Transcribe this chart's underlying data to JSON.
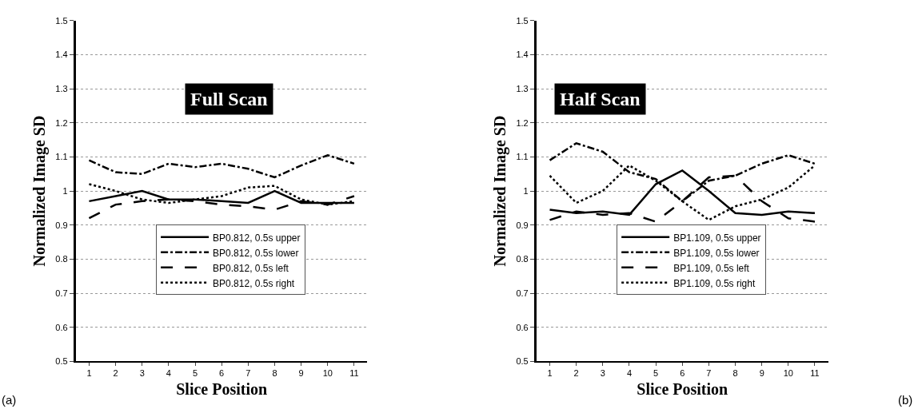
{
  "chart_data": [
    {
      "type": "line",
      "title": "Full Scan",
      "xlabel": "Slice Position",
      "ylabel": "Normalized Image SD",
      "categories": [
        "1",
        "2",
        "3",
        "4",
        "5",
        "6",
        "7",
        "8",
        "9",
        "10",
        "11"
      ],
      "ylim": [
        0.5,
        1.5
      ],
      "yticks": [
        {
          "value": 0.5,
          "label": "0.5"
        },
        {
          "value": 0.6,
          "label": "0.6"
        },
        {
          "value": 0.7,
          "label": "0.7"
        },
        {
          "value": 0.8,
          "label": "0.8"
        },
        {
          "value": 0.9,
          "label": "0.9"
        },
        {
          "value": 1,
          "label": "1"
        },
        {
          "value": 1.1,
          "label": "1.1"
        },
        {
          "value": 1.2,
          "label": "1.2"
        },
        {
          "value": 1.3,
          "label": "1.3"
        },
        {
          "value": 1.4,
          "label": "1.4"
        },
        {
          "value": 1.5,
          "label": "1.5"
        }
      ],
      "grid": "y",
      "legend": "bottom",
      "marker": "none",
      "annotations": [
        "(a)"
      ],
      "series": [
        {
          "name": "BP0.812, 0.5s upper",
          "color": "#000000",
          "line_style": "solid",
          "values": [
            0.97,
            0.985,
            1.0,
            0.975,
            0.975,
            0.97,
            0.965,
            1.0,
            0.965,
            0.965,
            0.965
          ]
        },
        {
          "name": "BP0.812, 0.5s lower",
          "color": "#000000",
          "line_style": "dashdot",
          "values": [
            1.09,
            1.055,
            1.05,
            1.08,
            1.07,
            1.08,
            1.065,
            1.04,
            1.075,
            1.105,
            1.08
          ]
        },
        {
          "name": "BP0.812, 0.5s left",
          "color": "#000000",
          "line_style": "longdash",
          "values": [
            0.92,
            0.96,
            0.97,
            0.975,
            0.97,
            0.96,
            0.955,
            0.945,
            0.97,
            0.96,
            0.985
          ]
        },
        {
          "name": "BP0.812, 0.5s right",
          "color": "#000000",
          "line_style": "dotted",
          "values": [
            1.02,
            1.0,
            0.975,
            0.965,
            0.975,
            0.985,
            1.01,
            1.015,
            0.975,
            0.96,
            0.97
          ]
        }
      ]
    },
    {
      "type": "line",
      "title": "Half Scan",
      "xlabel": "Slice Position",
      "ylabel": "Normalized Image SD",
      "categories": [
        "1",
        "2",
        "3",
        "4",
        "5",
        "6",
        "7",
        "8",
        "9",
        "10",
        "11"
      ],
      "ylim": [
        0.5,
        1.5
      ],
      "yticks": [
        {
          "value": 0.5,
          "label": "0.5"
        },
        {
          "value": 0.6,
          "label": "0.6"
        },
        {
          "value": 0.7,
          "label": "0.7"
        },
        {
          "value": 0.8,
          "label": "0.8"
        },
        {
          "value": 0.9,
          "label": "0.9"
        },
        {
          "value": 1,
          "label": "1"
        },
        {
          "value": 1.1,
          "label": "1.1"
        },
        {
          "value": 1.2,
          "label": "1.2"
        },
        {
          "value": 1.3,
          "label": "1.3"
        },
        {
          "value": 1.4,
          "label": "1.4"
        },
        {
          "value": 1.5,
          "label": "1.5"
        }
      ],
      "grid": "y",
      "legend": "bottom",
      "marker": "none",
      "annotations": [
        "(b)"
      ],
      "series": [
        {
          "name": "BP1.109, 0.5s upper",
          "color": "#000000",
          "line_style": "solid",
          "values": [
            0.945,
            0.935,
            0.94,
            0.93,
            1.02,
            1.06,
            1.0,
            0.935,
            0.93,
            0.94,
            0.935
          ]
        },
        {
          "name": "BP1.109, 0.5s lower",
          "color": "#000000",
          "line_style": "dashdot",
          "values": [
            1.09,
            1.14,
            1.115,
            1.055,
            1.035,
            0.97,
            1.03,
            1.045,
            1.08,
            1.105,
            1.08
          ]
        },
        {
          "name": "BP1.109, 0.5s left",
          "color": "#000000",
          "line_style": "longdash",
          "values": [
            0.915,
            0.94,
            0.93,
            0.935,
            0.91,
            0.97,
            1.04,
            1.045,
            0.97,
            0.92,
            0.91
          ]
        },
        {
          "name": "BP1.109, 0.5s right",
          "color": "#000000",
          "line_style": "dotted",
          "values": [
            1.045,
            0.965,
            1.0,
            1.075,
            1.03,
            0.97,
            0.915,
            0.955,
            0.975,
            1.01,
            1.075
          ]
        }
      ]
    }
  ]
}
